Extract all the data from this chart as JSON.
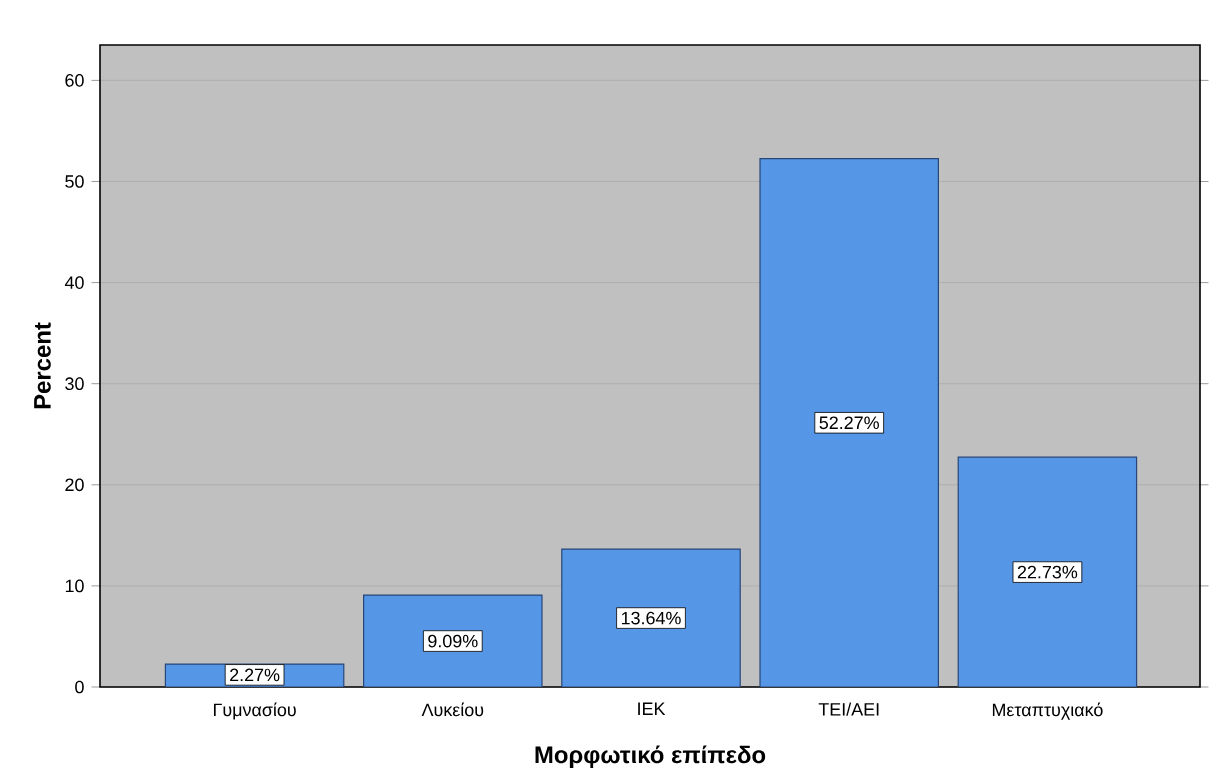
{
  "chart_data": {
    "type": "bar",
    "categories": [
      "Γυμνασίου",
      "Λυκείου",
      "ΙΕΚ",
      "ΤΕΙ/ΑΕΙ",
      "Μεταπτυχιακό"
    ],
    "values": [
      2.27,
      9.09,
      13.64,
      52.27,
      22.73
    ],
    "value_labels": [
      "2.27%",
      "9.09%",
      "13.64%",
      "52.27%",
      "22.73%"
    ],
    "color": "#5596e6",
    "xlabel": "Μορφωτικό επίπεδο",
    "ylabel": "Percent",
    "ylim": [
      0,
      63.5
    ],
    "yticks": [
      0,
      10,
      20,
      30,
      40,
      50,
      60
    ],
    "grid": "y"
  }
}
